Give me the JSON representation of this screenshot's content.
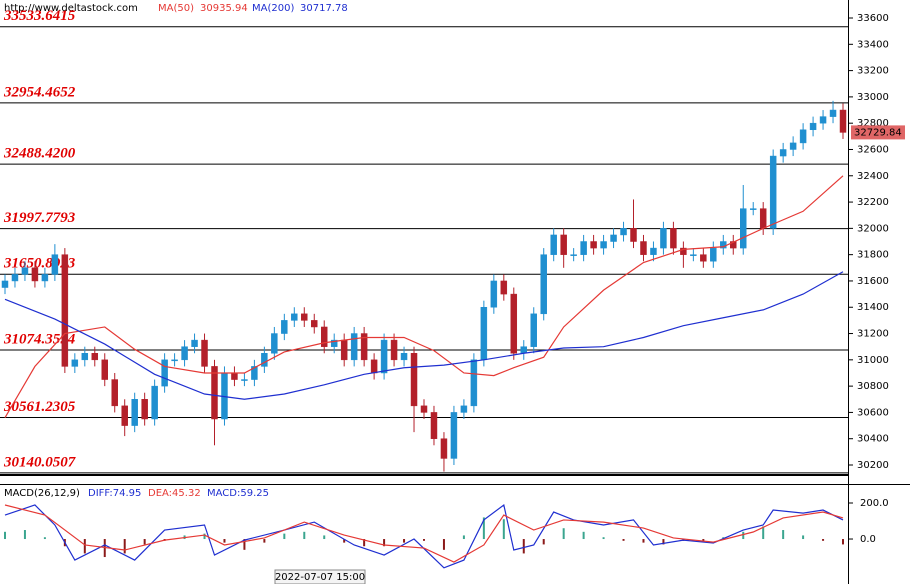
{
  "chart_data": [
    {
      "type": "candlestick",
      "source": "http://www.deltastock.com",
      "up_color": "#1f8fd0",
      "down_color": "#b3202a",
      "open": [
        31550,
        31600,
        31650,
        31700,
        31600,
        31650,
        31800,
        30950,
        31000,
        31050,
        31000,
        30850,
        30650,
        30500,
        30700,
        30550,
        30800,
        31000,
        31000,
        31100,
        31150,
        30950,
        30550,
        30900,
        30850,
        30850,
        30950,
        31050,
        31200,
        31300,
        31350,
        31300,
        31250,
        31100,
        31150,
        31000,
        31200,
        31000,
        30900,
        31150,
        31000,
        31050,
        30650,
        30600,
        30400,
        30250,
        30600,
        30650,
        31000,
        31400,
        31600,
        31500,
        31050,
        31100,
        31350,
        31800,
        31950,
        31800,
        31800,
        31900,
        31850,
        31900,
        31950,
        32000,
        31900,
        31800,
        31850,
        32000,
        31850,
        31800,
        31800,
        31750,
        31850,
        31900,
        31850,
        32150,
        32150,
        32000,
        32550,
        32600,
        32650,
        32750,
        32800,
        32850,
        32900
      ],
      "high": [
        31650,
        31700,
        31750,
        31750,
        31700,
        31880,
        31850,
        31050,
        31100,
        31100,
        31050,
        30900,
        30700,
        30750,
        30750,
        30850,
        31050,
        31050,
        31150,
        31200,
        31200,
        31000,
        30950,
        30950,
        30900,
        31000,
        31100,
        31250,
        31350,
        31400,
        31400,
        31350,
        31300,
        31200,
        31200,
        31250,
        31250,
        31050,
        31200,
        31200,
        31100,
        31100,
        30700,
        30650,
        30450,
        30650,
        30700,
        31050,
        31450,
        31650,
        31650,
        31550,
        31150,
        31400,
        31850,
        32000,
        32000,
        31850,
        31950,
        31950,
        31950,
        32000,
        32050,
        32220,
        31950,
        31900,
        32050,
        32050,
        31900,
        31850,
        31850,
        31900,
        31950,
        31950,
        32330,
        32200,
        32200,
        32600,
        32650,
        32700,
        32800,
        32850,
        32900,
        32970,
        32950
      ],
      "low": [
        31500,
        31550,
        31600,
        31550,
        31550,
        31600,
        30900,
        30900,
        30950,
        30950,
        30800,
        30600,
        30420,
        30450,
        30500,
        30500,
        30750,
        30950,
        30950,
        31050,
        30900,
        30350,
        30500,
        30800,
        30800,
        30800,
        30900,
        31000,
        31150,
        31250,
        31250,
        31200,
        31050,
        31050,
        30950,
        30950,
        30950,
        30850,
        30850,
        30950,
        30950,
        30450,
        30550,
        30350,
        30150,
        30200,
        30550,
        30600,
        30950,
        31350,
        31450,
        31000,
        31000,
        31050,
        31300,
        31750,
        31700,
        31750,
        31750,
        31800,
        31800,
        31850,
        31900,
        31850,
        31750,
        31750,
        31800,
        31800,
        31700,
        31750,
        31700,
        31700,
        31800,
        31800,
        31800,
        32100,
        31950,
        31950,
        32500,
        32550,
        32600,
        32700,
        32750,
        32800,
        32680
      ],
      "close": [
        31600,
        31650,
        31700,
        31600,
        31650,
        31800,
        30950,
        31000,
        31050,
        31000,
        30850,
        30650,
        30500,
        30700,
        30550,
        30800,
        31000,
        31000,
        31100,
        31150,
        30950,
        30550,
        30900,
        30850,
        30850,
        30950,
        31050,
        31200,
        31300,
        31350,
        31300,
        31250,
        31100,
        31150,
        31000,
        31200,
        31000,
        30900,
        31150,
        31000,
        31050,
        30650,
        30600,
        30400,
        30250,
        30600,
        30650,
        31000,
        31400,
        31600,
        31500,
        31050,
        31100,
        31350,
        31800,
        31950,
        31800,
        31800,
        31900,
        31850,
        31900,
        31950,
        32000,
        31900,
        31800,
        31850,
        32000,
        31850,
        31800,
        31800,
        31750,
        31850,
        31900,
        31850,
        32150,
        32150,
        32000,
        32550,
        32600,
        32650,
        32750,
        32800,
        32850,
        32900,
        32729.84
      ],
      "price_tag_color": "#e06666",
      "ylim": [
        30124,
        33737
      ],
      "yticks": [
        30200,
        30400,
        30600,
        30800,
        31000,
        31200,
        31400,
        31600,
        31800,
        32000,
        32200,
        32400,
        32600,
        32800,
        33000,
        33200,
        33400,
        33600
      ],
      "levels": [
        33533.6415,
        32954.4652,
        {
          "value": 32488.42,
          "label": "32488.4200"
        },
        31997.7793,
        31650.8923,
        31074.3594,
        30561.2305,
        30140.0507
      ],
      "level_color": "#e00000",
      "ma_lines": [
        {
          "name": "MA(50)",
          "value": 30935.94,
          "color": "#e53935",
          "x": [
            0,
            3,
            6,
            10,
            13,
            16,
            20,
            24,
            28,
            32,
            36,
            40,
            43,
            46,
            49,
            51,
            54,
            56,
            60,
            64,
            68,
            72,
            76,
            80,
            84
          ],
          "values": [
            30560,
            30950,
            31200,
            31250,
            31080,
            30950,
            30900,
            30900,
            31060,
            31130,
            31170,
            31170,
            31070,
            30900,
            30880,
            30940,
            31020,
            31250,
            31530,
            31740,
            31840,
            31860,
            32000,
            32130,
            32400
          ]
        },
        {
          "name": "MA(200)",
          "value": 30717.78,
          "color": "#1f2fd0",
          "x": [
            0,
            5,
            10,
            15,
            20,
            24,
            28,
            32,
            36,
            40,
            44,
            48,
            52,
            56,
            60,
            64,
            68,
            72,
            76,
            80,
            84
          ],
          "values": [
            31460,
            31310,
            31120,
            30890,
            30740,
            30700,
            30740,
            30810,
            30890,
            30940,
            30960,
            31000,
            31050,
            31090,
            31100,
            31170,
            31260,
            31320,
            31380,
            31500,
            31670
          ]
        }
      ],
      "cursor_label": "2022-07-07 15:00"
    },
    {
      "type": "macd",
      "name": "MACD(26,12,9)",
      "ylim": [
        -172,
        300
      ],
      "yticks": [
        {
          "value": 200,
          "label": "200.0"
        },
        {
          "value": 0,
          "label": "0.0"
        }
      ],
      "histogram": {
        "name": "MACD:59.25",
        "color": "#1f2fd0",
        "up_color": "#3aa58f",
        "down_color": "#8b1a1a",
        "x": [
          0,
          2,
          4,
          6,
          8,
          10,
          12,
          14,
          16,
          18,
          20,
          22,
          24,
          26,
          28,
          30,
          32,
          34,
          36,
          38,
          40,
          42,
          44,
          46,
          48,
          50,
          52,
          54,
          56,
          58,
          60,
          62,
          64,
          66,
          68,
          70,
          72,
          74,
          76,
          78,
          80,
          82,
          84
        ],
        "values": [
          40,
          50,
          10,
          -40,
          -80,
          -100,
          -80,
          -30,
          -10,
          20,
          30,
          -20,
          -60,
          -20,
          30,
          40,
          20,
          -20,
          -40,
          -40,
          -20,
          -10,
          -60,
          20,
          120,
          110,
          -80,
          -30,
          60,
          40,
          10,
          -10,
          -20,
          -30,
          -10,
          -10,
          10,
          40,
          70,
          50,
          20,
          -10,
          -30
        ]
      },
      "series": [
        {
          "name": "DIFF:74.95",
          "color": "#1f2fd0",
          "x": [
            0,
            3,
            5,
            7,
            10,
            13,
            16,
            20,
            21,
            24,
            28,
            31,
            35,
            38,
            41,
            44,
            46,
            48,
            50,
            51,
            53,
            55,
            57,
            60,
            63,
            65,
            68,
            71,
            74,
            76,
            77,
            80,
            82,
            84
          ],
          "values": [
            133,
            189,
            78,
            -117,
            -33,
            -117,
            50,
            78,
            -89,
            -6,
            50,
            94,
            -33,
            -89,
            0,
            -160,
            -117,
            106,
            189,
            -61,
            -33,
            150,
            106,
            78,
            106,
            -33,
            -6,
            -22,
            50,
            78,
            161,
            144,
            161,
            106
          ]
        },
        {
          "name": "DEA:45.32",
          "color": "#e53935",
          "x": [
            0,
            4,
            8,
            12,
            16,
            20,
            22,
            26,
            30,
            34,
            38,
            42,
            45,
            48,
            50,
            53,
            56,
            60,
            64,
            67,
            71,
            75,
            78,
            82,
            84
          ],
          "values": [
            189,
            133,
            -33,
            -61,
            -6,
            22,
            -33,
            6,
            94,
            22,
            -33,
            -50,
            -128,
            -33,
            133,
            50,
            106,
            94,
            61,
            6,
            -17,
            39,
            117,
            150,
            117
          ]
        }
      ]
    }
  ]
}
